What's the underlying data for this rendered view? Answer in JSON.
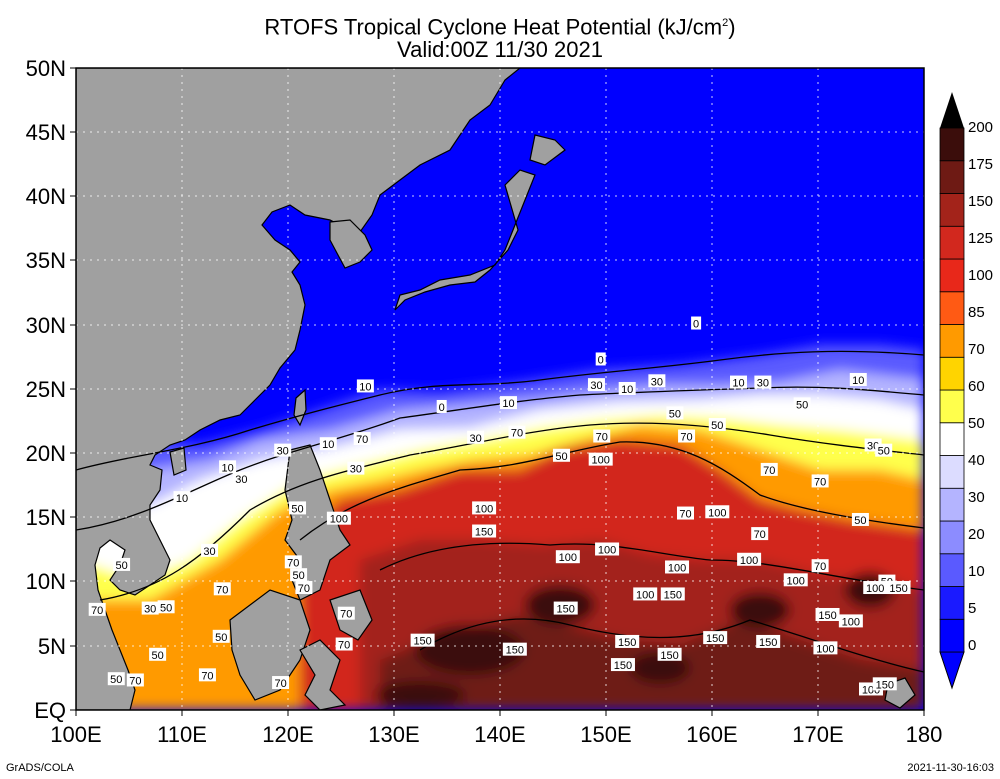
{
  "title": {
    "line1_main": "RTOFS Tropical Cyclone Heat Potential (kJ/cm",
    "line1_sup": "2",
    "line1_end": ")",
    "line2": "Valid:00Z 11/30 2021"
  },
  "axes": {
    "y_labels": [
      "50N",
      "45N",
      "40N",
      "35N",
      "30N",
      "25N",
      "20N",
      "15N",
      "10N",
      "5N",
      "EQ"
    ],
    "x_labels": [
      "100E",
      "110E",
      "120E",
      "130E",
      "140E",
      "150E",
      "160E",
      "170E",
      "180"
    ],
    "lon_range": [
      100,
      180
    ],
    "lat_range": [
      0,
      50
    ],
    "grid": "dotted"
  },
  "colorbar": {
    "levels": [
      "200",
      "175",
      "150",
      "125",
      "100",
      "85",
      "70",
      "60",
      "50",
      "40",
      "30",
      "20",
      "10",
      "5",
      "0"
    ],
    "colors": [
      "#3b0d0b",
      "#6e1a14",
      "#a3231a",
      "#d2281e",
      "#e8281a",
      "#ff5a14",
      "#ff9a00",
      "#ffd400",
      "#ffff4c",
      "#ffffff",
      "#dcdcff",
      "#b4b4ff",
      "#8c8cff",
      "#5a5aff",
      "#1a1aff",
      "#0000ff"
    ]
  },
  "colors": {
    "land": "#a0a0a0",
    "cold_ocean": "#0000ff"
  },
  "contour_labels": [
    {
      "text": "0",
      "lon": 149.5,
      "lat": 27.3
    },
    {
      "text": "0",
      "lon": 134.5,
      "lat": 23.6
    },
    {
      "text": "0",
      "lon": 158.5,
      "lat": 30.1
    },
    {
      "text": "10",
      "lon": 127.3,
      "lat": 25.2
    },
    {
      "text": "10",
      "lon": 140.8,
      "lat": 23.9
    },
    {
      "text": "10",
      "lon": 152,
      "lat": 25
    },
    {
      "text": "10",
      "lon": 162.5,
      "lat": 25.5
    },
    {
      "text": "10",
      "lon": 173.8,
      "lat": 25.7
    },
    {
      "text": "10",
      "lon": 123.8,
      "lat": 20.7
    },
    {
      "text": "10",
      "lon": 114.3,
      "lat": 18.9
    },
    {
      "text": "10",
      "lon": 110,
      "lat": 16.5
    },
    {
      "text": "30",
      "lon": 149.1,
      "lat": 25.3
    },
    {
      "text": "30",
      "lon": 154.8,
      "lat": 25.6
    },
    {
      "text": "30",
      "lon": 137.7,
      "lat": 21.2
    },
    {
      "text": "30",
      "lon": 119.5,
      "lat": 20.2
    },
    {
      "text": "30",
      "lon": 115.6,
      "lat": 18
    },
    {
      "text": "30",
      "lon": 126.4,
      "lat": 18.8
    },
    {
      "text": "30",
      "lon": 112.6,
      "lat": 12.4
    },
    {
      "text": "30",
      "lon": 107,
      "lat": 7.9
    },
    {
      "text": "30",
      "lon": 175.2,
      "lat": 20.6
    },
    {
      "text": "30",
      "lon": 164.8,
      "lat": 25.5
    },
    {
      "text": "50",
      "lon": 156.5,
      "lat": 23.1
    },
    {
      "text": "50",
      "lon": 168.5,
      "lat": 23.8
    },
    {
      "text": "50",
      "lon": 160.5,
      "lat": 22.2
    },
    {
      "text": "50",
      "lon": 145.8,
      "lat": 19.8
    },
    {
      "text": "50",
      "lon": 120.9,
      "lat": 15.7
    },
    {
      "text": "50",
      "lon": 121,
      "lat": 10.5
    },
    {
      "text": "50",
      "lon": 108.5,
      "lat": 8
    },
    {
      "text": "50",
      "lon": 113.7,
      "lat": 5.7
    },
    {
      "text": "50",
      "lon": 107.7,
      "lat": 4.3
    },
    {
      "text": "50",
      "lon": 103.8,
      "lat": 2.4
    },
    {
      "text": "50",
      "lon": 176.2,
      "lat": 20.2
    },
    {
      "text": "50",
      "lon": 174,
      "lat": 14.8
    },
    {
      "text": "50",
      "lon": 104.3,
      "lat": 11.3
    },
    {
      "text": "50",
      "lon": 176.5,
      "lat": 10
    },
    {
      "text": "70",
      "lon": 127,
      "lat": 21.1
    },
    {
      "text": "70",
      "lon": 141.6,
      "lat": 21.6
    },
    {
      "text": "70",
      "lon": 149.6,
      "lat": 21.3
    },
    {
      "text": "70",
      "lon": 157.6,
      "lat": 21.3
    },
    {
      "text": "70",
      "lon": 165.4,
      "lat": 18.7
    },
    {
      "text": "70",
      "lon": 170.2,
      "lat": 17.8
    },
    {
      "text": "70",
      "lon": 157.5,
      "lat": 15.3
    },
    {
      "text": "70",
      "lon": 164.5,
      "lat": 13.7
    },
    {
      "text": "70",
      "lon": 170.2,
      "lat": 11.2
    },
    {
      "text": "70",
      "lon": 120.5,
      "lat": 11.5
    },
    {
      "text": "70",
      "lon": 121.5,
      "lat": 9.5
    },
    {
      "text": "70",
      "lon": 113.8,
      "lat": 9.4
    },
    {
      "text": "70",
      "lon": 125.5,
      "lat": 7.5
    },
    {
      "text": "70",
      "lon": 119.3,
      "lat": 2.1
    },
    {
      "text": "70",
      "lon": 125.3,
      "lat": 5.1
    },
    {
      "text": "70",
      "lon": 112.4,
      "lat": 2.7
    },
    {
      "text": "70",
      "lon": 102,
      "lat": 7.8
    },
    {
      "text": "70",
      "lon": 105.6,
      "lat": 2.3
    },
    {
      "text": "100",
      "lon": 149.5,
      "lat": 19.5
    },
    {
      "text": "100",
      "lon": 124.8,
      "lat": 14.9
    },
    {
      "text": "100",
      "lon": 138.5,
      "lat": 15.7
    },
    {
      "text": "100",
      "lon": 160.5,
      "lat": 15.4
    },
    {
      "text": "100",
      "lon": 150.1,
      "lat": 12.5
    },
    {
      "text": "100",
      "lon": 146.4,
      "lat": 11.9
    },
    {
      "text": "100",
      "lon": 163.5,
      "lat": 11.7
    },
    {
      "text": "100",
      "lon": 156.7,
      "lat": 11.1
    },
    {
      "text": "100",
      "lon": 167.9,
      "lat": 10.1
    },
    {
      "text": "100",
      "lon": 153.7,
      "lat": 9
    },
    {
      "text": "100",
      "lon": 170.7,
      "lat": 4.8
    },
    {
      "text": "100",
      "lon": 173.1,
      "lat": 6.9
    },
    {
      "text": "100",
      "lon": 175,
      "lat": 1.6
    },
    {
      "text": "100",
      "lon": 175.4,
      "lat": 9.5
    },
    {
      "text": "150",
      "lon": 138.5,
      "lat": 13.9
    },
    {
      "text": "150",
      "lon": 146.2,
      "lat": 7.9
    },
    {
      "text": "150",
      "lon": 156.3,
      "lat": 9
    },
    {
      "text": "150",
      "lon": 132.7,
      "lat": 5.4
    },
    {
      "text": "150",
      "lon": 141.4,
      "lat": 4.7
    },
    {
      "text": "150",
      "lon": 152,
      "lat": 5.3
    },
    {
      "text": "150",
      "lon": 160.3,
      "lat": 5.6
    },
    {
      "text": "150",
      "lon": 165.3,
      "lat": 5.3
    },
    {
      "text": "150",
      "lon": 170.9,
      "lat": 7.4
    },
    {
      "text": "150",
      "lon": 151.6,
      "lat": 3.5
    },
    {
      "text": "150",
      "lon": 156,
      "lat": 4.3
    },
    {
      "text": "150",
      "lon": 177.6,
      "lat": 9.5
    },
    {
      "text": "150",
      "lon": 176.3,
      "lat": 2
    }
  ],
  "footer": {
    "left": "GrADS/COLA",
    "right": "2021-11-30-16:03"
  }
}
